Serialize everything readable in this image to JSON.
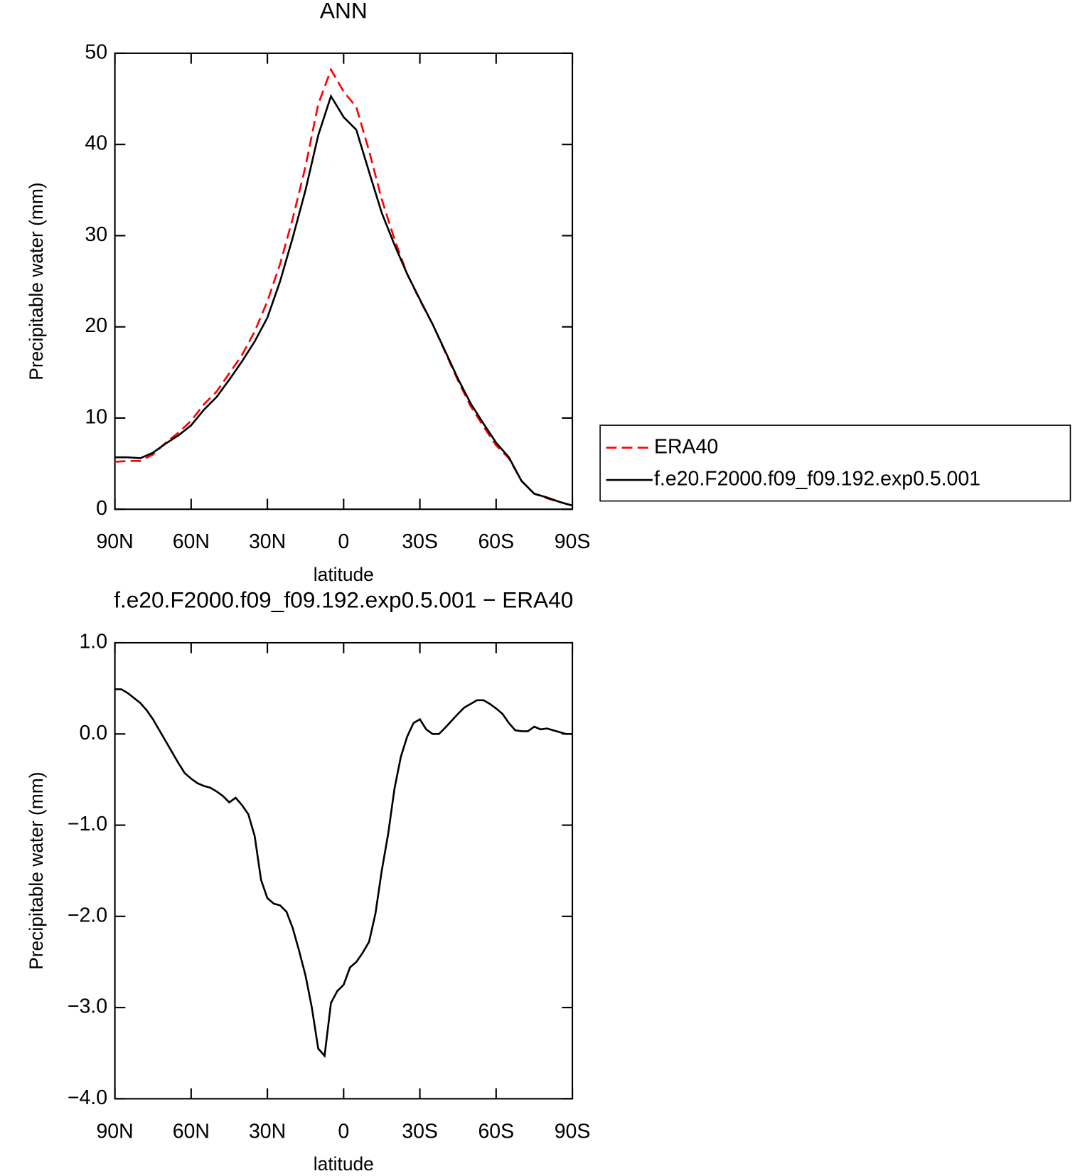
{
  "chart_data": [
    {
      "type": "line",
      "title": "ANN",
      "x_label": "latitude",
      "y_label": "Precipitable water (mm)",
      "x": [
        90,
        85,
        80,
        75,
        70,
        65,
        60,
        55,
        50,
        45,
        40,
        35,
        30,
        25,
        20,
        15,
        10,
        5,
        0,
        -5,
        -10,
        -15,
        -20,
        -25,
        -30,
        -35,
        -40,
        -45,
        -50,
        -55,
        -60,
        -65,
        -70,
        -75,
        -80,
        -85,
        -90
      ],
      "series": [
        {
          "name": "ERA40",
          "color": "#ff0000",
          "linestyle": "dashed",
          "values": [
            5.2,
            5.3,
            5.3,
            6.0,
            7.3,
            8.4,
            9.7,
            11.5,
            12.9,
            14.9,
            16.9,
            19.5,
            22.8,
            26.9,
            31.9,
            37.6,
            44.4,
            48.2,
            45.8,
            44.1,
            39.3,
            34.0,
            29.6,
            25.8,
            22.9,
            20.3,
            17.2,
            14.1,
            11.3,
            9.1,
            7.0,
            5.6,
            3.1,
            1.7,
            1.2,
            0.8,
            0.4
          ]
        },
        {
          "name": "f.e20.F2000.f09_f09.192.exp0.5.001",
          "color": "#000000",
          "linestyle": "solid",
          "values": [
            5.7,
            5.7,
            5.6,
            6.2,
            7.2,
            8.1,
            9.2,
            10.9,
            12.3,
            14.2,
            16.2,
            18.4,
            21.0,
            25.0,
            29.8,
            35.0,
            41.0,
            45.3,
            43.0,
            41.6,
            37.0,
            32.5,
            29.0,
            25.8,
            23.0,
            20.3,
            17.3,
            14.3,
            11.6,
            9.4,
            7.3,
            5.7,
            3.1,
            1.7,
            1.3,
            0.8,
            0.4
          ]
        }
      ],
      "xlim": [
        90,
        -90
      ],
      "xticks": [
        {
          "value": 90,
          "label": "90N"
        },
        {
          "value": 60,
          "label": "60N"
        },
        {
          "value": 30,
          "label": "30N"
        },
        0,
        {
          "value": -30,
          "label": "30S"
        },
        {
          "value": -60,
          "label": "60S"
        },
        {
          "value": -90,
          "label": "90S"
        }
      ],
      "ylim": [
        0,
        50
      ],
      "yticks": [
        0,
        10,
        20,
        30,
        40,
        50
      ],
      "legend": "outside-right"
    },
    {
      "type": "line",
      "title": "f.e20.F2000.f09_f09.192.exp0.5.001 − ERA40",
      "x_label": "latitude",
      "y_label": "Precipitable water (mm)",
      "x": [
        90,
        87.5,
        85,
        80,
        77.5,
        75,
        70,
        65,
        62.5,
        60,
        57.5,
        55,
        52.5,
        50,
        47.5,
        45,
        42.5,
        40,
        37.5,
        35,
        32.5,
        30,
        27.5,
        25,
        22.5,
        20,
        17.5,
        15,
        12.5,
        10,
        7.5,
        5,
        2.5,
        0,
        -2.5,
        -5,
        -7.5,
        -10,
        -12.5,
        -15,
        -17.5,
        -20,
        -22.5,
        -25,
        -27.5,
        -30,
        -32.5,
        -35,
        -37.5,
        -40,
        -45,
        -47.5,
        -50,
        -52.5,
        -55,
        -57.5,
        -60,
        -62.5,
        -65,
        -67.5,
        -70,
        -72.5,
        -75,
        -77.5,
        -80,
        -85,
        -87.5,
        -90
      ],
      "series": [
        {
          "color": "#000000",
          "linestyle": "solid",
          "values": [
            0.49,
            0.49,
            0.45,
            0.34,
            0.26,
            0.16,
            -0.08,
            -0.32,
            -0.43,
            -0.49,
            -0.54,
            -0.57,
            -0.59,
            -0.63,
            -0.68,
            -0.75,
            -0.7,
            -0.78,
            -0.88,
            -1.12,
            -1.6,
            -1.8,
            -1.86,
            -1.88,
            -1.95,
            -2.13,
            -2.38,
            -2.65,
            -3.0,
            -3.45,
            -3.53,
            -2.95,
            -2.82,
            -2.75,
            -2.56,
            -2.5,
            -2.4,
            -2.28,
            -1.97,
            -1.5,
            -1.1,
            -0.6,
            -0.25,
            -0.03,
            0.12,
            0.16,
            0.05,
            0.0,
            0.0,
            0.07,
            0.22,
            0.29,
            0.33,
            0.37,
            0.37,
            0.33,
            0.28,
            0.22,
            0.12,
            0.04,
            0.03,
            0.03,
            0.08,
            0.05,
            0.06,
            0.02,
            0.0,
            0.0
          ]
        }
      ],
      "xlim": [
        90,
        -90
      ],
      "xticks": [
        {
          "value": 90,
          "label": "90N"
        },
        {
          "value": 60,
          "label": "60N"
        },
        {
          "value": 30,
          "label": "30N"
        },
        0,
        {
          "value": -30,
          "label": "30S"
        },
        {
          "value": -60,
          "label": "60S"
        },
        {
          "value": -90,
          "label": "90S"
        }
      ],
      "ylim": [
        -4,
        1
      ],
      "yticks": [
        {
          "value": -4,
          "label": "−4.0"
        },
        {
          "value": -3,
          "label": "−3.0"
        },
        {
          "value": -2,
          "label": "−2.0"
        },
        {
          "value": -1,
          "label": "−1.0"
        },
        {
          "value": 0,
          "label": "0.0"
        },
        {
          "value": 1,
          "label": "1.0"
        }
      ]
    }
  ]
}
